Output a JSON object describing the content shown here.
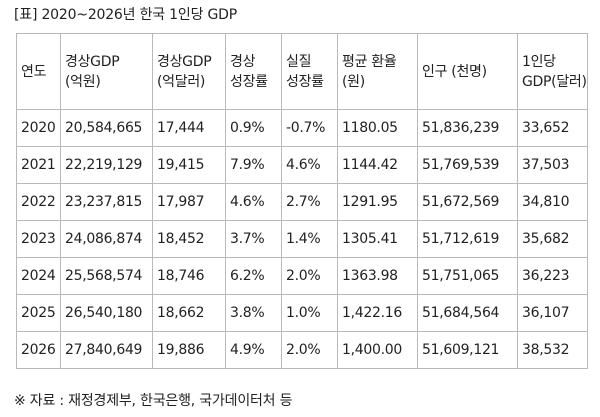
{
  "title": "[표] 2020~2026년 한국 1인당 GDP",
  "table": {
    "headers": [
      "연도",
      "경상GDP (억원)",
      "경상GDP (억달러)",
      "경상 성장률",
      "실질 성장률",
      "평균 환율(원)",
      "인구 (천명)",
      "1인당 GDP(달러)"
    ],
    "rows": [
      [
        "2020",
        "20,584,665",
        "17,444",
        "0.9%",
        "-0.7%",
        "1180.05",
        "51,836,239",
        "33,652"
      ],
      [
        "2021",
        "22,219,129",
        "19,415",
        "7.9%",
        "4.6%",
        "1144.42",
        "51,769,539",
        "37,503"
      ],
      [
        "2022",
        "23,237,815",
        "17,987",
        "4.6%",
        "2.7%",
        "1291.95",
        "51,672,569",
        "34,810"
      ],
      [
        "2023",
        "24,086,874",
        "18,452",
        "3.7%",
        "1.4%",
        "1305.41",
        "51,712,619",
        "35,682"
      ],
      [
        "2024",
        "25,568,574",
        "18,746",
        "6.2%",
        "2.0%",
        "1363.98",
        "51,751,065",
        "36,223"
      ],
      [
        "2025",
        "26,540,180",
        "18,662",
        "3.8%",
        "1.0%",
        "1,422.16",
        "51,684,564",
        "36,107"
      ],
      [
        "2026",
        "27,840,649",
        "19,886",
        "4.9%",
        "2.0%",
        "1,400.00",
        "51,609,121",
        "38,532"
      ]
    ]
  },
  "source": "※ 자료 : 재정경제부, 한국은행, 국가데이터처 등"
}
